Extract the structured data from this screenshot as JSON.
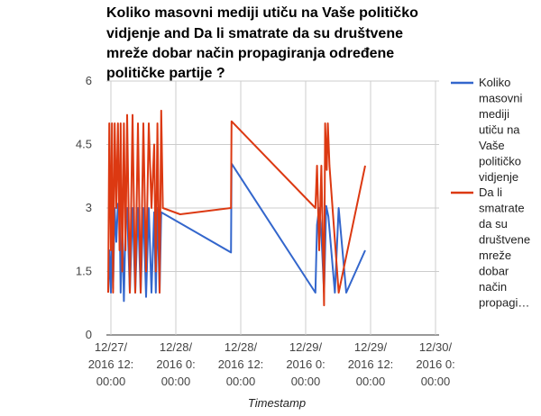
{
  "chart_data": {
    "type": "line",
    "title_lines": [
      "Koliko masovni mediji utiču na Vaše političko",
      "vidjenje and Da li smatrate da su društvene",
      "mreže dobar način propagiranja određene",
      "političke partije ?"
    ],
    "xlabel": "Timestamp",
    "ylabel": "",
    "ylim": [
      0,
      6
    ],
    "yticks": [
      "0",
      "1.5",
      "3",
      "4.5",
      "6"
    ],
    "xlim": [
      0,
      87
    ],
    "xticks": [
      {
        "t": 0,
        "lines": [
          "12/27/",
          "2016 12:",
          "00:00"
        ]
      },
      {
        "t": 12,
        "lines": [
          "12/28/",
          "2016 0:",
          "00:00"
        ]
      },
      {
        "t": 24,
        "lines": [
          "12/28/",
          "2016 12:",
          "00:00"
        ]
      },
      {
        "t": 36,
        "lines": [
          "12/29/",
          "2016 0:",
          "00:00"
        ]
      },
      {
        "t": 48,
        "lines": [
          "12/29/",
          "2016 12:",
          "00:00"
        ]
      },
      {
        "t": 60,
        "lines": [
          "12/30/",
          "2016 0:",
          "00:00"
        ]
      }
    ],
    "x_note": "x values are hours since 12/27/2016 12:00:00",
    "legend_position": "right",
    "series": [
      {
        "name": "Koliko masovni mediji utiču na Vaše političko vidjenje",
        "legend_lines": [
          "Koliko",
          "masovni",
          "mediji",
          "utiču na",
          "Vaše",
          "političko",
          "vidjenje"
        ],
        "color": "#3366cc",
        "x": [
          -0.5,
          -0.3,
          0.0,
          0.2,
          0.4,
          0.7,
          1.0,
          1.3,
          1.6,
          1.8,
          2.1,
          2.4,
          2.7,
          3.0,
          3.5,
          4.0,
          4.5,
          5.0,
          5.5,
          6.0,
          6.5,
          7.0,
          7.5,
          8.0,
          8.3,
          8.6,
          9.0,
          9.3,
          22.2,
          22.3,
          37.8,
          38.1,
          38.5,
          38.9,
          39.4,
          39.8,
          40.2,
          41.4,
          42.1,
          43.5,
          47.0
        ],
        "y": [
          1.0,
          2.0,
          1.0,
          3.0,
          1.1,
          3.0,
          2.2,
          3.1,
          3.0,
          1.0,
          2.6,
          0.8,
          2.6,
          3.0,
          1.0,
          3.0,
          1.0,
          3.0,
          1.0,
          3.0,
          0.9,
          3.0,
          1.0,
          2.9,
          1.0,
          3.0,
          1.0,
          2.9,
          1.95,
          4.05,
          1.0,
          2.6,
          3.0,
          2.4,
          1.0,
          3.05,
          2.8,
          1.0,
          3.0,
          1.0,
          2.0
        ]
      },
      {
        "name": "Da li smatrate da su društvene mreže dobar način propagiranja određene političke partije",
        "legend_lines": [
          "Da li",
          "smatrate",
          "da su",
          "društvene",
          "mreže",
          "dobar",
          "način",
          "propagi…"
        ],
        "color": "#dc3912",
        "x": [
          -0.5,
          -0.3,
          0.0,
          0.2,
          0.4,
          0.7,
          1.0,
          1.3,
          1.6,
          1.8,
          2.1,
          2.4,
          2.7,
          3.0,
          3.5,
          4.0,
          4.5,
          5.0,
          5.5,
          6.0,
          6.5,
          7.0,
          7.5,
          8.0,
          8.3,
          8.6,
          9.0,
          9.3,
          9.6,
          12.8,
          22.2,
          22.3,
          37.8,
          38.1,
          38.5,
          38.9,
          39.4,
          39.6,
          39.9,
          40.1,
          40.4,
          42.1,
          47.0
        ],
        "y": [
          1.0,
          5.0,
          2.0,
          5.0,
          1.0,
          5.0,
          3.0,
          5.0,
          2.0,
          5.0,
          1.5,
          5.0,
          2.0,
          5.2,
          1.0,
          5.2,
          1.0,
          5.0,
          1.0,
          5.0,
          1.5,
          5.0,
          3.0,
          4.5,
          1.5,
          5.0,
          1.0,
          5.3,
          3.0,
          2.85,
          3.0,
          5.05,
          3.0,
          4.0,
          2.0,
          4.0,
          0.7,
          5.0,
          3.9,
          5.0,
          4.0,
          1.0,
          4.0
        ]
      }
    ]
  }
}
